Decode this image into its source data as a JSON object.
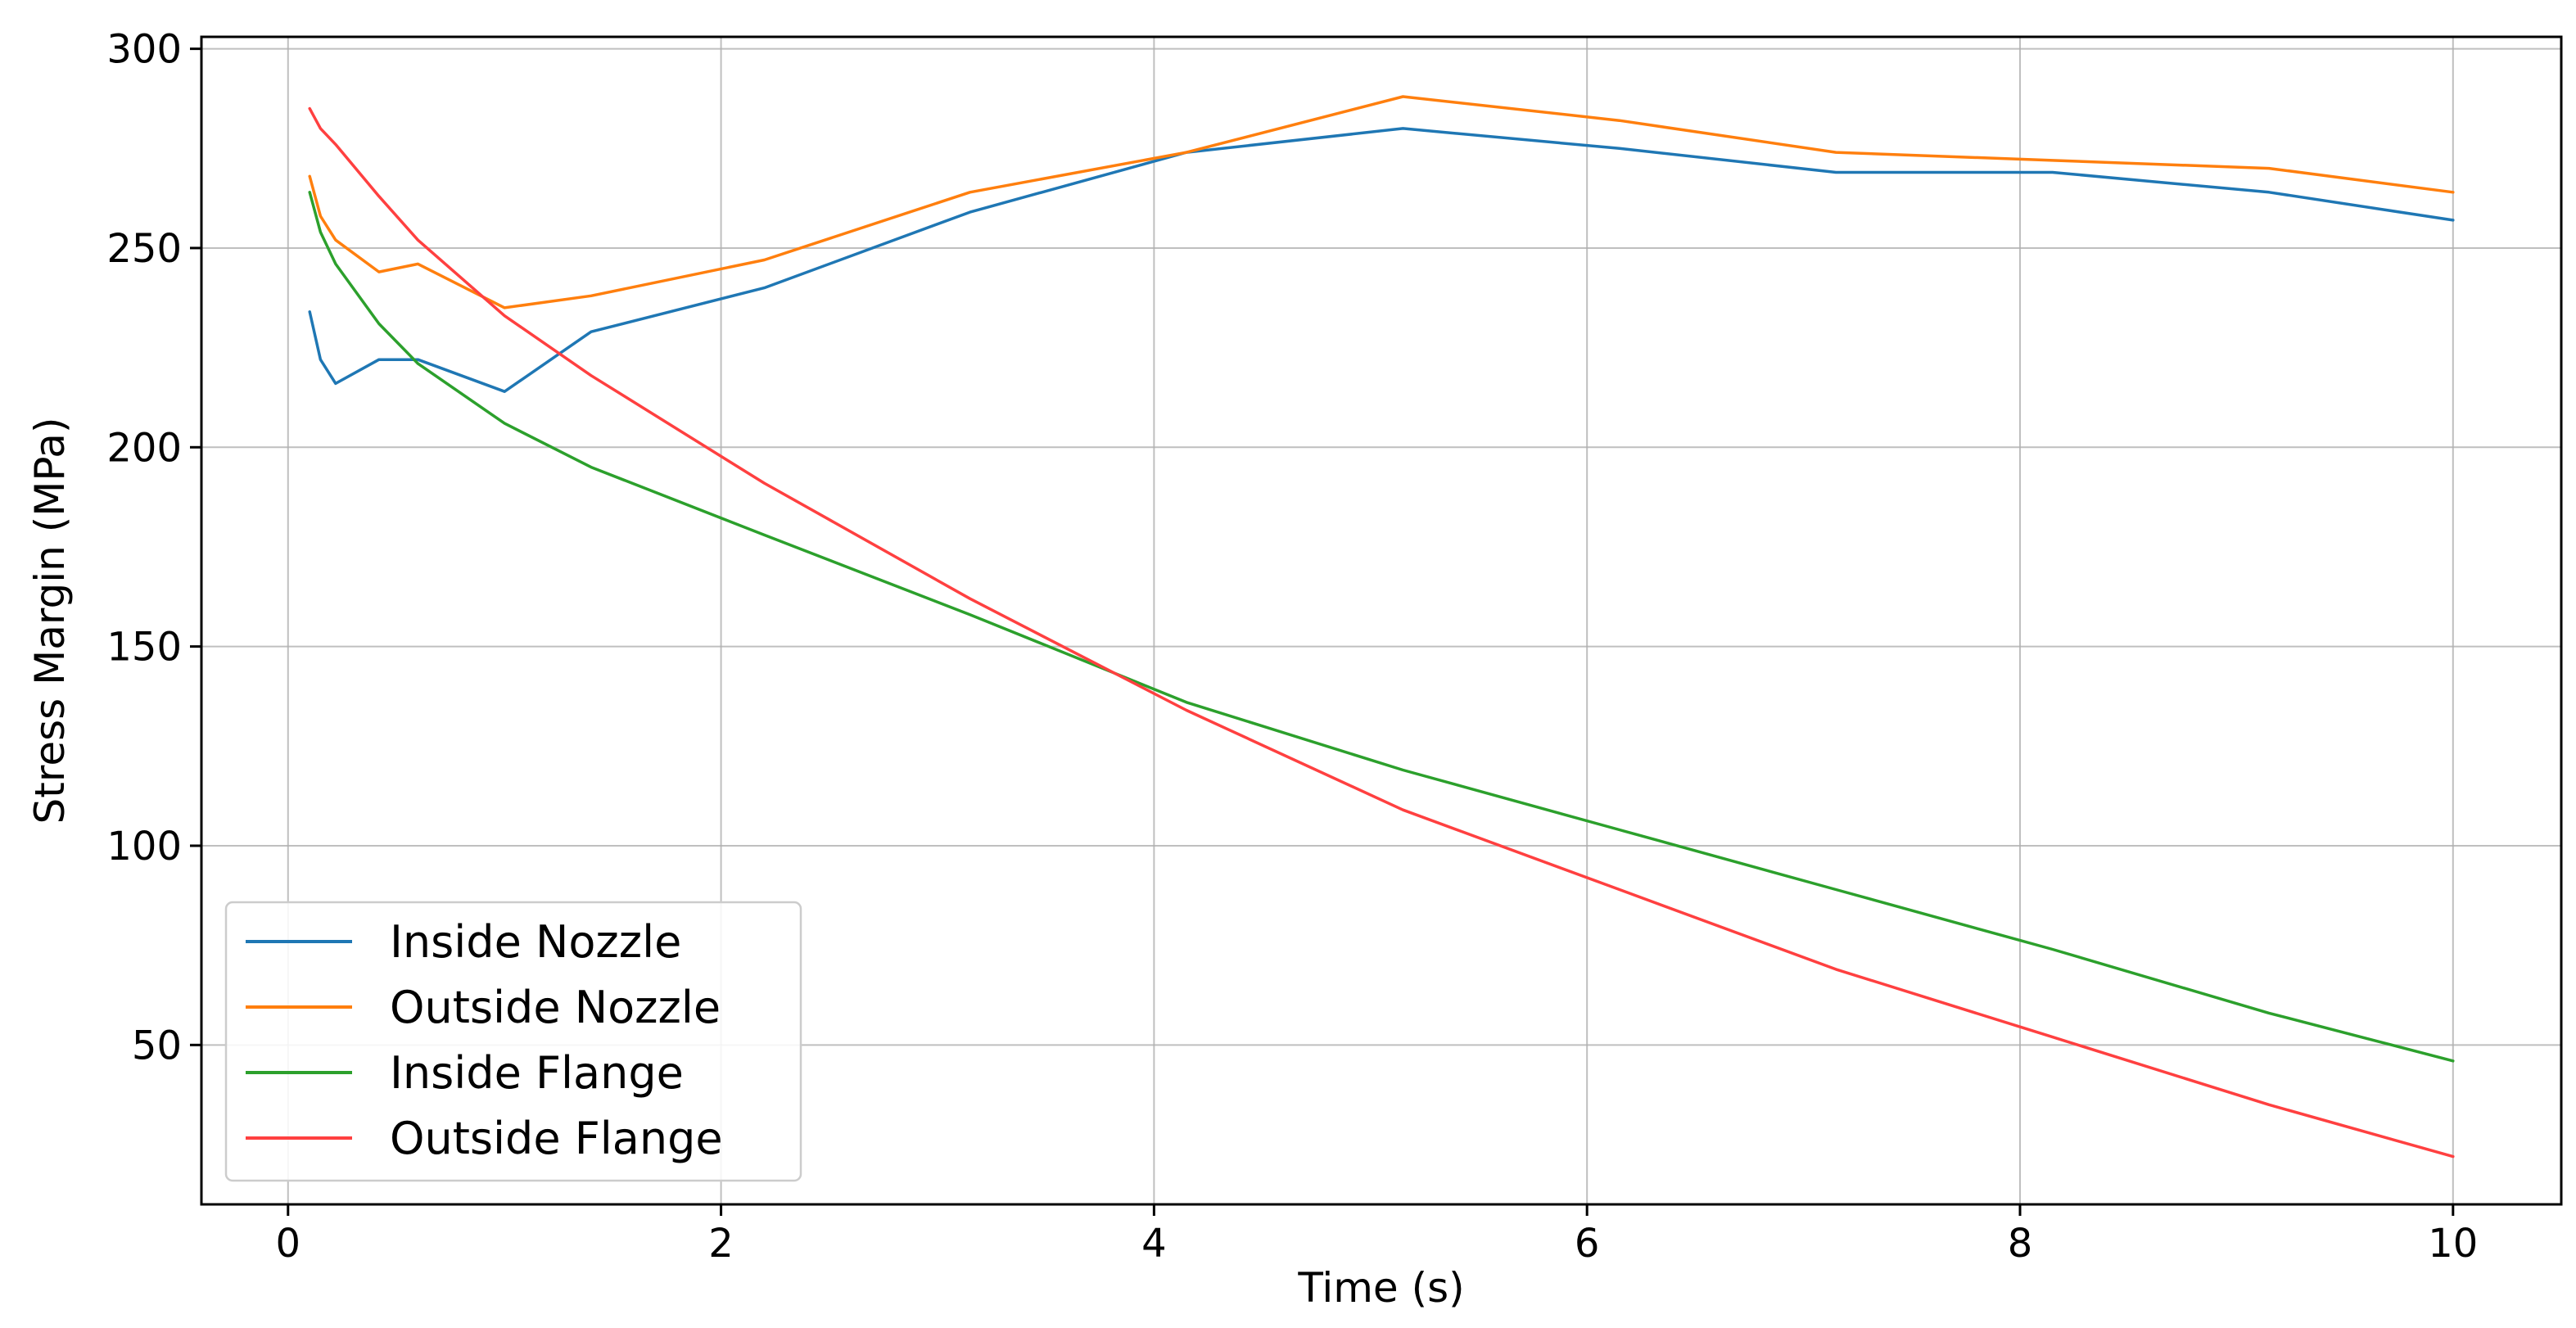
{
  "chart_data": {
    "type": "line",
    "title": "",
    "xlabel": "Time (s)",
    "ylabel": "Stress Margin (MPa)",
    "xlim": [
      -0.4,
      10.5
    ],
    "ylim": [
      10,
      303
    ],
    "xticks": [
      0,
      2,
      4,
      6,
      8,
      10
    ],
    "yticks": [
      50,
      100,
      150,
      200,
      250,
      300
    ],
    "grid": true,
    "legend_position": "bottom-left",
    "series": [
      {
        "name": "Inside Nozzle",
        "color": "#1f77b4",
        "x": [
          0.1,
          0.15,
          0.22,
          0.42,
          0.6,
          1.0,
          1.4,
          2.2,
          3.15,
          4.15,
          5.15,
          6.15,
          7.15,
          8.15,
          9.15,
          10.0
        ],
        "y": [
          234,
          222,
          216,
          222,
          222,
          214,
          229,
          240,
          259,
          274,
          280,
          275,
          269,
          269,
          264,
          257
        ]
      },
      {
        "name": "Outside Nozzle",
        "color": "#ff7f0e",
        "x": [
          0.1,
          0.15,
          0.22,
          0.42,
          0.6,
          1.0,
          1.4,
          2.2,
          3.15,
          4.15,
          5.15,
          6.15,
          7.15,
          8.15,
          9.15,
          10.0
        ],
        "y": [
          268,
          258,
          252,
          244,
          246,
          235,
          238,
          247,
          264,
          274,
          288,
          282,
          274,
          272,
          270,
          264
        ]
      },
      {
        "name": "Inside Flange",
        "color": "#2ca02c",
        "x": [
          0.1,
          0.15,
          0.22,
          0.42,
          0.6,
          1.0,
          1.4,
          2.2,
          3.15,
          4.15,
          5.15,
          6.15,
          7.15,
          8.15,
          9.15,
          10.0
        ],
        "y": [
          264,
          254,
          246,
          231,
          221,
          206,
          195,
          178,
          158,
          136,
          119,
          104,
          89,
          74,
          58,
          46
        ]
      },
      {
        "name": "Outside Flange",
        "color": "#ff4040",
        "x": [
          0.1,
          0.15,
          0.22,
          0.42,
          0.6,
          1.0,
          1.4,
          2.2,
          3.15,
          4.15,
          5.15,
          6.15,
          7.15,
          8.15,
          9.15,
          10.0
        ],
        "y": [
          285,
          280,
          276,
          263,
          252,
          233,
          218,
          191,
          162,
          134,
          109,
          89,
          69,
          52,
          35,
          22
        ]
      }
    ]
  }
}
